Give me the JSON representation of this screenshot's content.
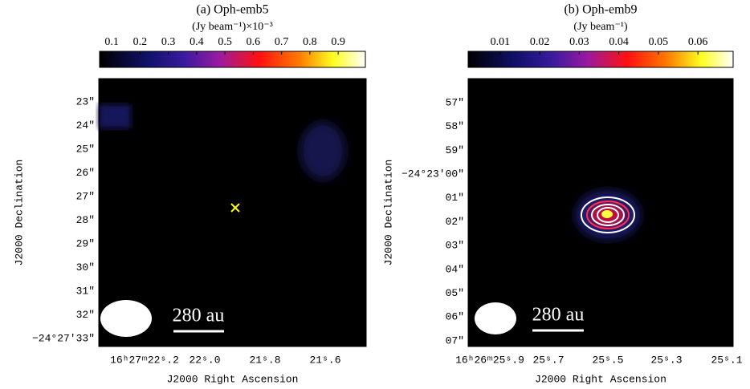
{
  "chart_data": [
    {
      "type": "image",
      "title": "(a) Oph-emb5",
      "colorbar_label": "(Jy beam⁻¹)×10⁻³",
      "clim": [
        0.057,
        0.996
      ],
      "cticks": [
        0.1,
        0.2,
        0.3,
        0.4,
        0.5,
        0.6,
        0.7,
        0.8,
        0.9
      ],
      "xlabel": "J2000 Right Ascension",
      "ylabel": "J2000 Declination",
      "xtick_labels": [
        "16ʰ27ᵐ22ˢ.2",
        "22ˢ.0",
        "21ˢ.8",
        "21ˢ.6"
      ],
      "ytick_labels": [
        "23″",
        "24″",
        "25″",
        "26″",
        "27″",
        "28″",
        "29″",
        "30″",
        "31″",
        "32″",
        "−24°27′33″"
      ],
      "scale_bar": "280 au"
    },
    {
      "type": "image",
      "title": "(b) Oph-emb9",
      "colorbar_label": "(Jy beam⁻¹)",
      "clim": [
        0.0019,
        0.0689
      ],
      "cticks": [
        0.01,
        0.02,
        0.03,
        0.04,
        0.05,
        0.06
      ],
      "xlabel": "J2000 Right Ascension",
      "ylabel": "J2000 Declination",
      "xtick_labels": [
        "16ʰ26ᵐ25ˢ.9",
        "25ˢ.7",
        "25ˢ.5",
        "25ˢ.3",
        "25ˢ.1"
      ],
      "ytick_labels": [
        "57″",
        "58″",
        "59″",
        "−24°23′00″",
        "01″",
        "02″",
        "03″",
        "04″",
        "05″",
        "06″",
        "07″"
      ],
      "scale_bar": "280 au"
    }
  ]
}
